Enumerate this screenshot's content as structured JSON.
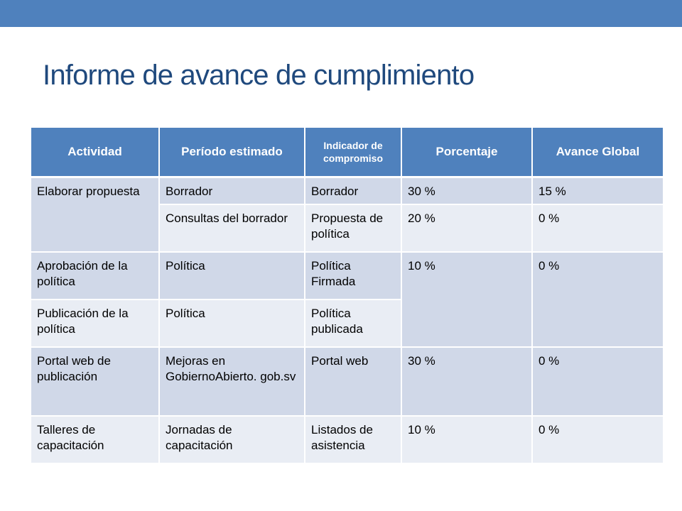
{
  "slide": {
    "title": "Informe de avance de cumplimiento"
  },
  "colors": {
    "accent": "#4f81bd",
    "title": "#1f497d",
    "row_dark": "#d0d8e8",
    "row_light": "#e9edf4"
  },
  "table": {
    "headers": {
      "actividad": "Actividad",
      "periodo": "Período estimado",
      "indicador": "Indicador de compromiso",
      "porcentaje": "Porcentaje",
      "avance": "Avance Global"
    },
    "rows": [
      {
        "actividad": "Elaborar propuesta",
        "periodo": "Borrador",
        "indicador": "Borrador",
        "porcentaje": "30 %",
        "avance": "15 %"
      },
      {
        "periodo": "Consultas del borrador",
        "indicador": "Propuesta de política",
        "porcentaje": "20 %",
        "avance": "0 %"
      },
      {
        "actividad": "Aprobación de la política",
        "periodo": "Política",
        "indicador": "Política Firmada",
        "porcentaje": "10 %",
        "avance": "0 %"
      },
      {
        "actividad": "Publicación de la política",
        "periodo": "Política",
        "indicador": "Política publicada"
      },
      {
        "actividad": "Portal web de publicación",
        "periodo": "Mejoras en GobiernoAbierto. gob.sv",
        "indicador": "Portal web",
        "porcentaje": "30 %",
        "avance": "0 %"
      },
      {
        "actividad": "Talleres de capacitación",
        "periodo": "Jornadas de capacitación",
        "indicador": "Listados de asistencia",
        "porcentaje": "10 %",
        "avance": "0 %"
      }
    ]
  }
}
